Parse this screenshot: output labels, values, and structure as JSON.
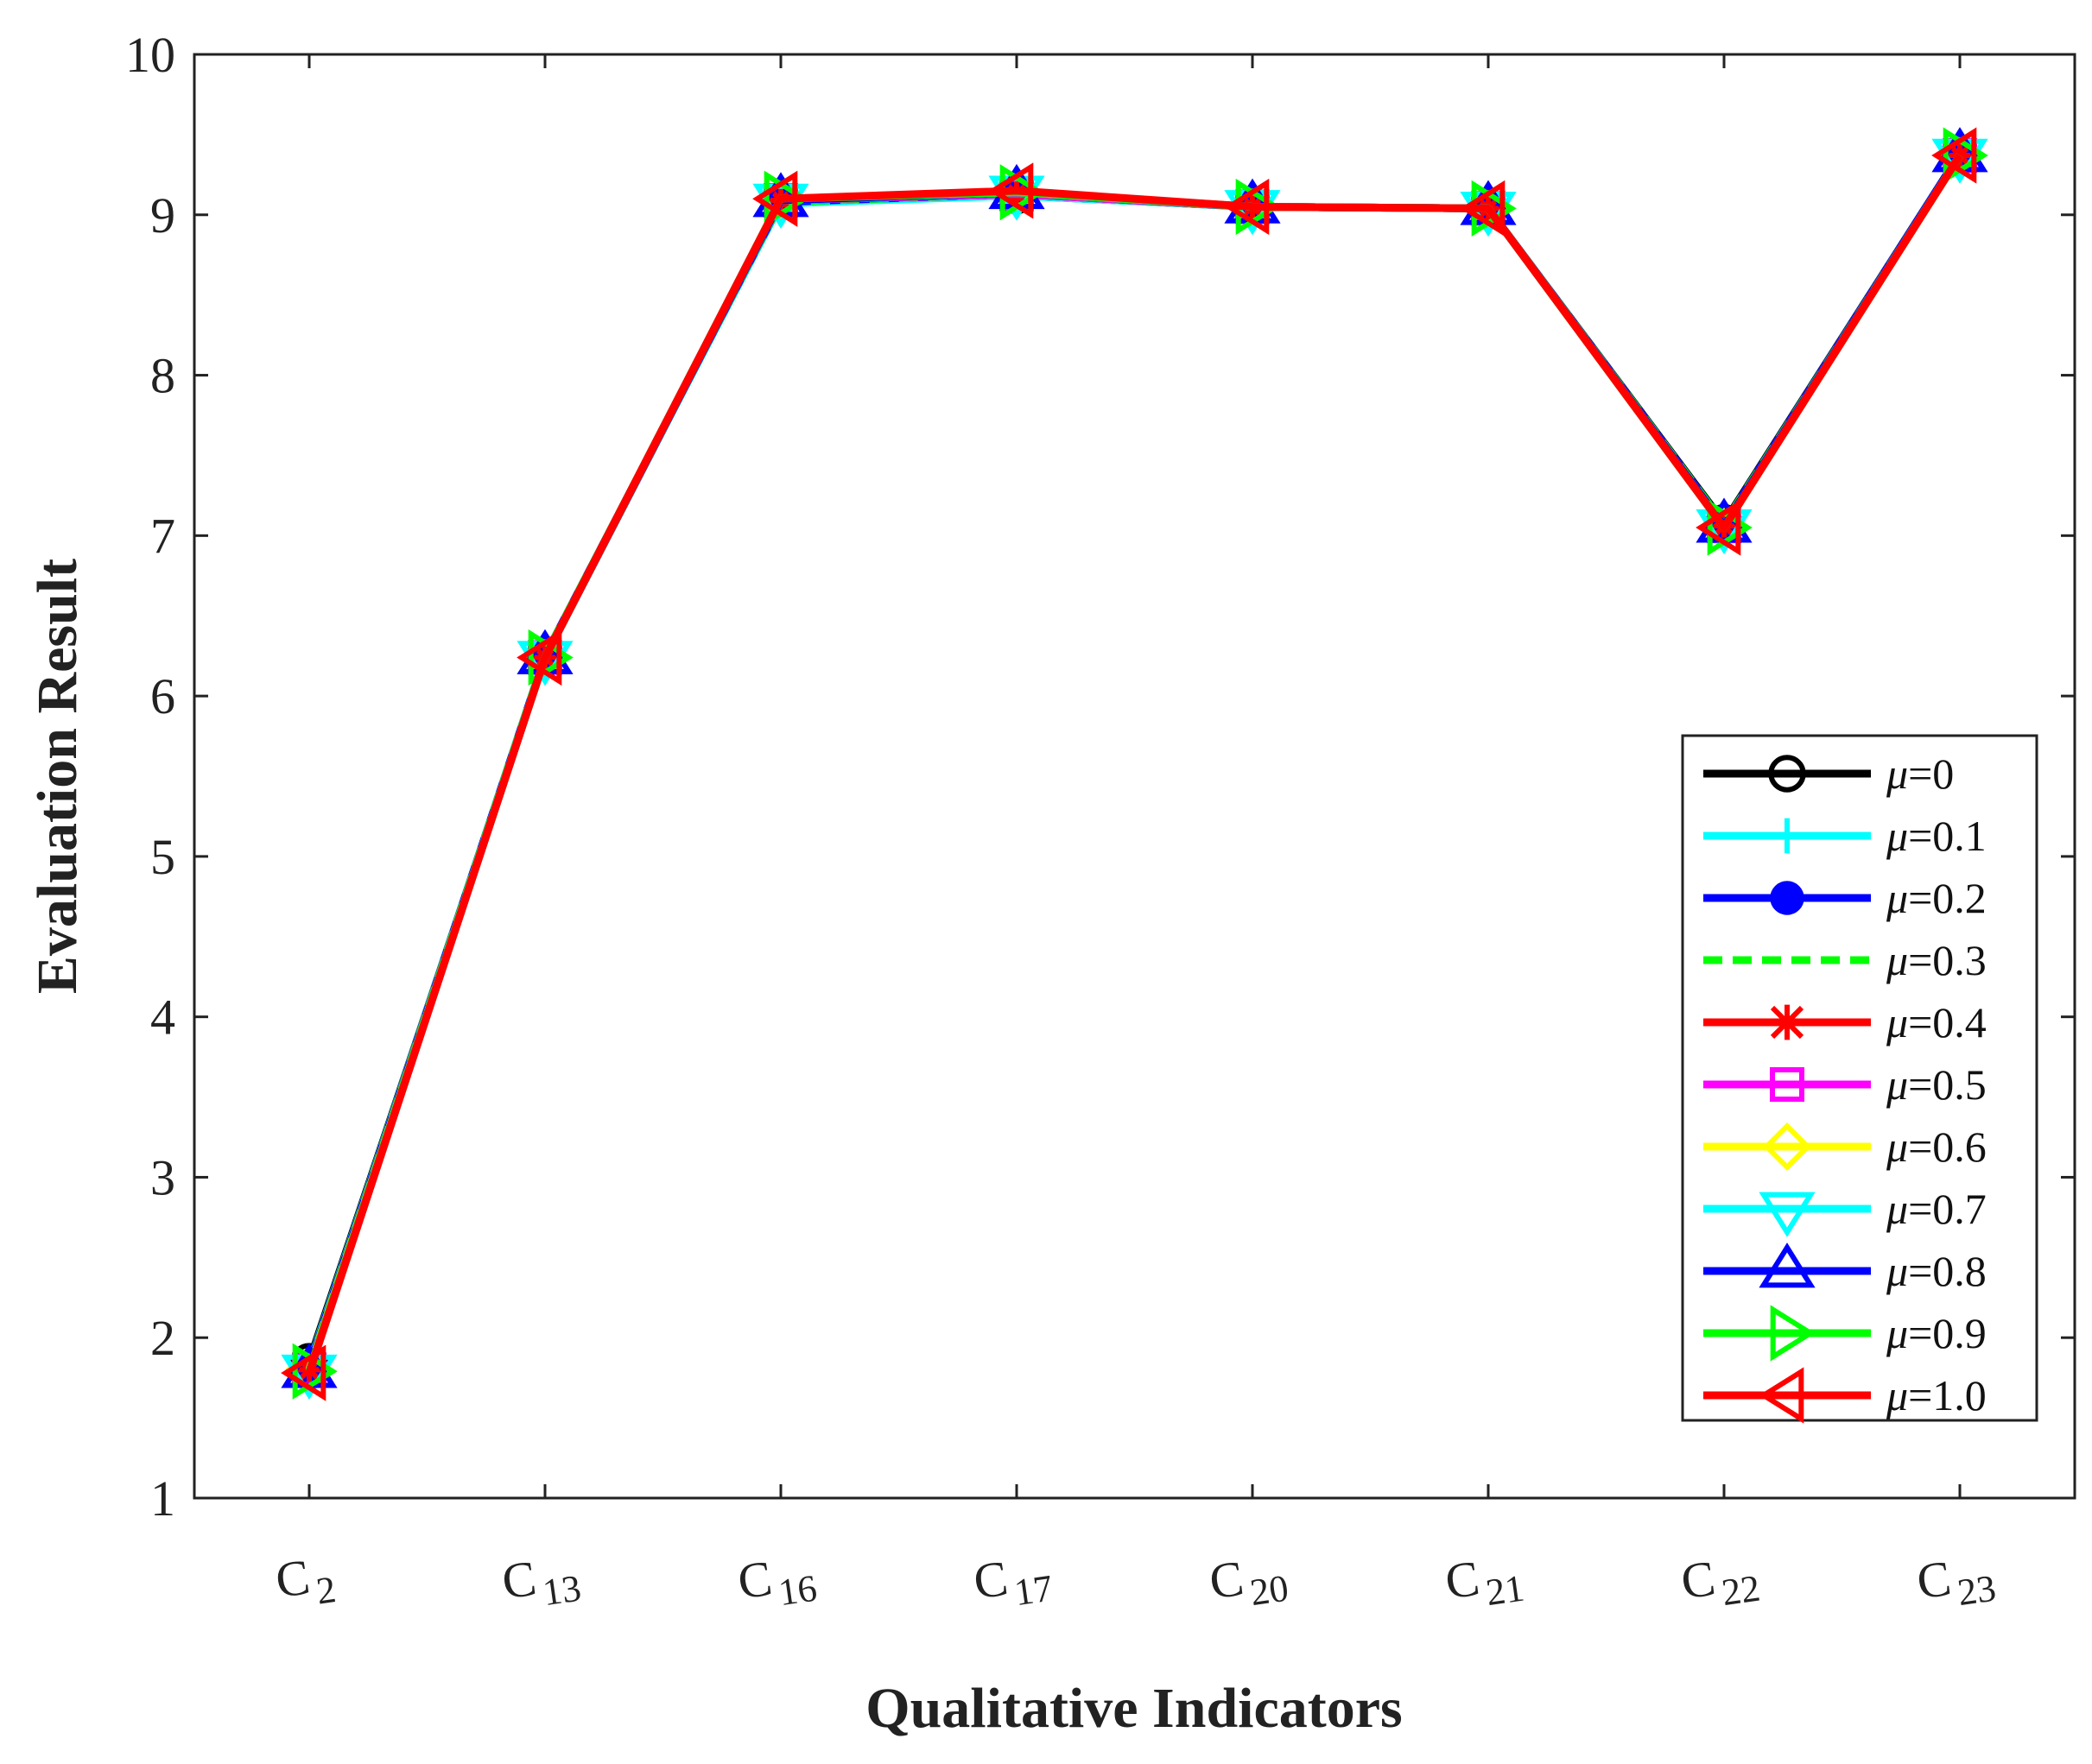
{
  "chart_data": {
    "type": "line",
    "xlabel": "Qualitative Indicators",
    "ylabel": "Evaluation Result",
    "categories": [
      {
        "base": "C",
        "sub": "2"
      },
      {
        "base": "C",
        "sub": "13"
      },
      {
        "base": "C",
        "sub": "16"
      },
      {
        "base": "C",
        "sub": "17"
      },
      {
        "base": "C",
        "sub": "20"
      },
      {
        "base": "C",
        "sub": "21"
      },
      {
        "base": "C",
        "sub": "22"
      },
      {
        "base": "C",
        "sub": "23"
      }
    ],
    "ylim": [
      1,
      10
    ],
    "yticks": [
      1,
      2,
      3,
      4,
      5,
      6,
      7,
      8,
      9,
      10
    ],
    "grid": false,
    "legend_position": "lower-right",
    "series": [
      {
        "name": "μ=0",
        "label_var": "μ",
        "label_value": "=0",
        "color": "#000000",
        "marker": "circle-open",
        "dash": "solid",
        "values": [
          1.85,
          6.24,
          9.08,
          9.12,
          9.05,
          9.04,
          7.08,
          9.38
        ]
      },
      {
        "name": "μ=0.1",
        "label_var": "μ",
        "label_value": "=0.1",
        "color": "#00ffff",
        "marker": "plus",
        "dash": "solid",
        "values": [
          1.83,
          6.25,
          9.07,
          9.12,
          9.05,
          9.04,
          7.07,
          9.38
        ]
      },
      {
        "name": "μ=0.2",
        "label_var": "μ",
        "label_value": "=0.2",
        "color": "#0000ff",
        "marker": "circle-filled",
        "dash": "solid",
        "values": [
          1.82,
          6.25,
          9.08,
          9.13,
          9.05,
          9.04,
          7.07,
          9.38
        ]
      },
      {
        "name": "μ=0.3",
        "label_var": "μ",
        "label_value": "=0.3",
        "color": "#00ff00",
        "marker": "none",
        "dash": "dashed",
        "values": [
          1.81,
          6.25,
          9.08,
          9.13,
          9.05,
          9.04,
          7.07,
          9.37
        ]
      },
      {
        "name": "μ=0.4",
        "label_var": "μ",
        "label_value": "=0.4",
        "color": "#ff0000",
        "marker": "star",
        "dash": "solid",
        "values": [
          1.8,
          6.24,
          9.09,
          9.13,
          9.05,
          9.04,
          7.06,
          9.37
        ]
      },
      {
        "name": "μ=0.5",
        "label_var": "μ",
        "label_value": "=0.5",
        "color": "#ff00ff",
        "marker": "square-open",
        "dash": "solid",
        "values": [
          1.8,
          6.24,
          9.09,
          9.13,
          9.05,
          9.04,
          7.06,
          9.37
        ]
      },
      {
        "name": "μ=0.6",
        "label_var": "μ",
        "label_value": "=0.6",
        "color": "#ffff00",
        "marker": "diamond-open",
        "dash": "solid",
        "values": [
          1.8,
          6.24,
          9.09,
          9.14,
          9.05,
          9.04,
          7.06,
          9.37
        ]
      },
      {
        "name": "μ=0.7",
        "label_var": "μ",
        "label_value": "=0.7",
        "color": "#00ffff",
        "marker": "triangle-down-open",
        "dash": "solid",
        "values": [
          1.79,
          6.24,
          9.09,
          9.14,
          9.05,
          9.04,
          7.06,
          9.37
        ]
      },
      {
        "name": "μ=0.8",
        "label_var": "μ",
        "label_value": "=0.8",
        "color": "#0000ff",
        "marker": "triangle-up-open",
        "dash": "solid",
        "values": [
          1.79,
          6.24,
          9.09,
          9.14,
          9.05,
          9.04,
          7.06,
          9.37
        ]
      },
      {
        "name": "μ=0.9",
        "label_var": "μ",
        "label_value": "=0.9",
        "color": "#00ff00",
        "marker": "triangle-right-open",
        "dash": "solid",
        "values": [
          1.79,
          6.24,
          9.1,
          9.14,
          9.05,
          9.04,
          7.05,
          9.37
        ]
      },
      {
        "name": "μ=1.0",
        "label_var": "μ",
        "label_value": "=1.0",
        "color": "#ff0000",
        "marker": "triangle-left-open",
        "dash": "solid",
        "values": [
          1.78,
          6.24,
          9.1,
          9.15,
          9.05,
          9.04,
          7.05,
          9.37
        ]
      }
    ]
  }
}
